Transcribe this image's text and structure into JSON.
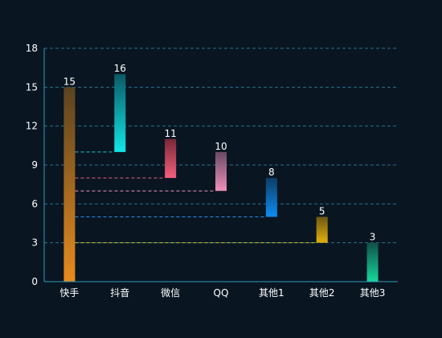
{
  "chart_data": {
    "type": "bar",
    "categories": [
      "快手",
      "抖音",
      "微信",
      "QQ",
      "其他1",
      "其他2",
      "其他3"
    ],
    "ranges": [
      {
        "base": 0,
        "top": 15,
        "label": "15"
      },
      {
        "base": 10,
        "top": 16,
        "label": "16"
      },
      {
        "base": 8,
        "top": 11,
        "label": "11"
      },
      {
        "base": 7,
        "top": 10,
        "label": "10"
      },
      {
        "base": 5,
        "top": 8,
        "label": "8"
      },
      {
        "base": 3,
        "top": 5,
        "label": "5"
      },
      {
        "base": 0,
        "top": 3,
        "label": "3"
      }
    ],
    "yticks": [
      "0",
      "3",
      "6",
      "9",
      "12",
      "15",
      "18"
    ],
    "ylim": [
      0,
      18
    ],
    "grid": true,
    "colors": {
      "background": "#091622",
      "axis": "#2f9bb5",
      "grid": "#2a6f89",
      "tick_text": "#ffffff",
      "label_text": "#ffffff",
      "bars": [
        [
          "#e98b1e",
          "#5a4321"
        ],
        [
          "#12e7e6",
          "#0a5a66"
        ],
        [
          "#f55f7c",
          "#7a2838"
        ],
        [
          "#f08fb8",
          "#6a4a64"
        ],
        [
          "#0d8df2",
          "#0c3d66"
        ],
        [
          "#e2b00d",
          "#6e5612"
        ],
        [
          "#18d69c",
          "#0f5048"
        ]
      ],
      "connectors": [
        "#19c6d2",
        "#f05b7a",
        "#ef8dba",
        "#2a8ee8",
        "#e0c21b"
      ]
    }
  }
}
